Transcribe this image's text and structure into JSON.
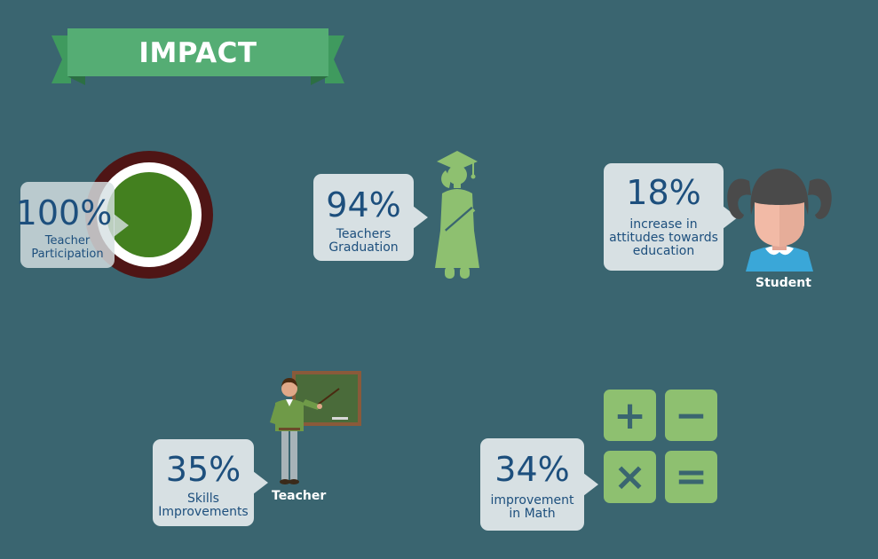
{
  "banner": {
    "title": "IMPACT"
  },
  "stats": {
    "teacher_participation": {
      "value": "100%",
      "label_line1": "Teacher",
      "label_line2": "Participation",
      "fill_fraction": 1.0
    },
    "teachers_graduation": {
      "value": "94%",
      "label_line1": "Teachers",
      "label_line2": "Graduation"
    },
    "attitudes": {
      "value": "18%",
      "label_line1": "increase in",
      "label_line2": "attitudes towards",
      "label_line3": "education"
    },
    "skills": {
      "value": "35%",
      "label_line1": "Skills",
      "label_line2": "Improvements"
    },
    "math": {
      "value": "34%",
      "label_line1": "improvement",
      "label_line2": "in Math"
    }
  },
  "captions": {
    "student": "Student",
    "teacher": "Teacher"
  },
  "calculator": {
    "plus": "+",
    "minus": "−",
    "times": "×",
    "equals": "="
  },
  "colors": {
    "background": "#3a6570",
    "banner_green": "#55ad74",
    "banner_dark_green": "#3b8f58",
    "bubble_bg": "#d7e0e3",
    "bubble_text": "#1d4f7d",
    "ring_outer": "#4f1515",
    "ring_inner": "#43801f",
    "light_green": "#8ec070"
  },
  "icons": [
    "graduate-icon",
    "student-girl-icon",
    "teacher-at-board-icon",
    "calculator-icon",
    "progress-ring"
  ]
}
